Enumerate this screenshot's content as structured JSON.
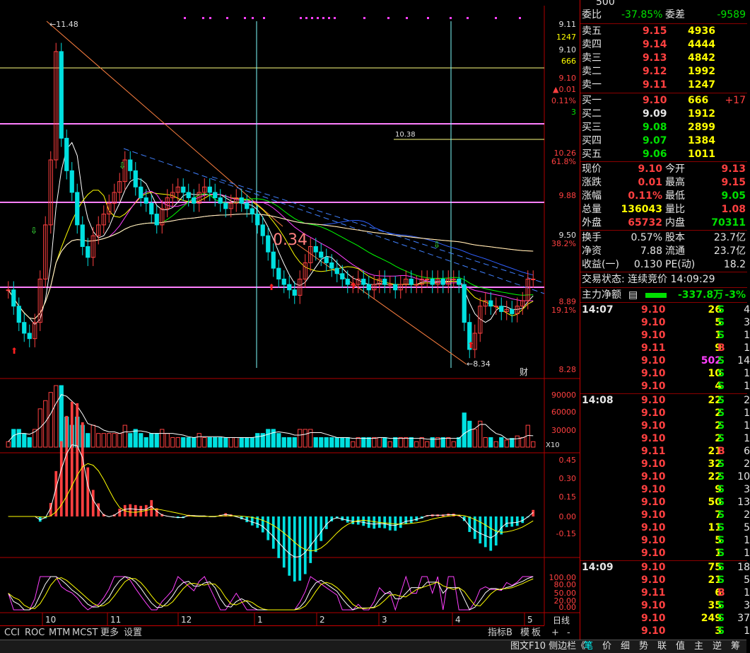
{
  "topbar": {
    "labels": [
      "",
      "",
      "",
      "",
      "",
      "",
      "",
      "",
      ""
    ]
  },
  "main_chart": {
    "y_ticks": [
      "9.11",
      "1247",
      "9.10",
      "666",
      "9.10",
      "▲0.01",
      "0.11%",
      "3",
      "10.26",
      "61.8%",
      "9.88",
      "9.50",
      "38.2%",
      "8.89",
      "19.1%",
      "8.28"
    ],
    "hlines": [
      {
        "value": "10.38",
        "label": "10.38"
      }
    ],
    "high_label": "11.48",
    "low_label": "8.34",
    "fib_label": "0.34",
    "cai_label": "财"
  },
  "volume": {
    "ticks": [
      "90000",
      "60000",
      "30000"
    ],
    "unit": "X10"
  },
  "macd": {
    "ticks": [
      "0.45",
      "0.30",
      "0.15",
      "0.00",
      "-0.15"
    ]
  },
  "kdj": {
    "ticks": [
      "100.00",
      "80.00",
      "50.00",
      "20.00",
      "0.00"
    ]
  },
  "x_axis": {
    "labels": [
      "10",
      "11",
      "12",
      "1",
      "2",
      "3",
      "4",
      "5"
    ],
    "period": "日线"
  },
  "tabs": {
    "left": [
      "CCI",
      "ROC",
      "MTM",
      "MCST",
      "更多",
      "设置"
    ],
    "right": [
      "指标B",
      "模",
      "板",
      "+",
      "-"
    ]
  },
  "panel": {
    "webi_label": "委比",
    "webi_val": "-37.85%",
    "weicha_label": "委差",
    "weicha_val": "-9589",
    "header_fragment": "500",
    "asks": [
      {
        "label": "卖五",
        "price": "9.15",
        "vol": "4936"
      },
      {
        "label": "卖四",
        "price": "9.14",
        "vol": "4444"
      },
      {
        "label": "卖三",
        "price": "9.13",
        "vol": "4842"
      },
      {
        "label": "卖二",
        "price": "9.12",
        "vol": "1992"
      },
      {
        "label": "卖一",
        "price": "9.11",
        "vol": "1247"
      }
    ],
    "bids": [
      {
        "label": "买一",
        "price": "9.10",
        "vol": "666",
        "extra": "+17"
      },
      {
        "label": "买二",
        "price": "9.09",
        "vol": "1912",
        "extra": ""
      },
      {
        "label": "买三",
        "price": "9.08",
        "vol": "2899",
        "extra": ""
      },
      {
        "label": "买四",
        "price": "9.07",
        "vol": "1384",
        "extra": ""
      },
      {
        "label": "买五",
        "price": "9.06",
        "vol": "1011",
        "extra": ""
      }
    ],
    "quote": [
      {
        "l1": "现价",
        "v1": "9.10",
        "l2": "今开",
        "v2": "9.13",
        "c1": "red",
        "c2": "red"
      },
      {
        "l1": "涨跌",
        "v1": "0.01",
        "l2": "最高",
        "v2": "9.15",
        "c1": "red",
        "c2": "red"
      },
      {
        "l1": "涨幅",
        "v1": "0.11%",
        "l2": "最低",
        "v2": "9.05",
        "c1": "red",
        "c2": "green"
      },
      {
        "l1": "总量",
        "v1": "136043",
        "l2": "量比",
        "v2": "1.08",
        "c1": "yellow",
        "c2": "red"
      },
      {
        "l1": "外盘",
        "v1": "65732",
        "l2": "内盘",
        "v2": "70311",
        "c1": "red",
        "c2": "green"
      }
    ],
    "stats": [
      {
        "l1": "换手",
        "v1": "0.57%",
        "l2": "股本",
        "v2": "23.7亿"
      },
      {
        "l1": "净资",
        "v1": "7.88",
        "l2": "流通",
        "v2": "23.7亿"
      },
      {
        "l1": "收益(一)",
        "v1": "0.130",
        "l2": "PE(动)",
        "v2": "18.2"
      }
    ],
    "trade_state": "交易状态: 连续竞价 14:09:29",
    "main_fund_label": "主力净额",
    "main_fund_val": "-337.8万",
    "main_fund_pct": "-3%",
    "ticks": [
      {
        "time": "14:07",
        "price": "9.10",
        "vol": "26",
        "side": "S",
        "n": "4"
      },
      {
        "time": "",
        "price": "9.10",
        "vol": "5",
        "side": "S",
        "n": "3"
      },
      {
        "time": "",
        "price": "9.10",
        "vol": "1",
        "side": "S",
        "n": "1"
      },
      {
        "time": "",
        "price": "9.11",
        "vol": "9",
        "side": "B",
        "n": "1"
      },
      {
        "time": "",
        "price": "9.10",
        "vol": "502",
        "side": "S",
        "n": "14"
      },
      {
        "time": "",
        "price": "9.10",
        "vol": "10",
        "side": "S",
        "n": "1"
      },
      {
        "time": "",
        "price": "9.10",
        "vol": "4",
        "side": "S",
        "n": "1"
      },
      {
        "time": "14:08",
        "price": "9.10",
        "vol": "22",
        "side": "S",
        "n": "2"
      },
      {
        "time": "",
        "price": "9.10",
        "vol": "2",
        "side": "S",
        "n": "1"
      },
      {
        "time": "",
        "price": "9.10",
        "vol": "2",
        "side": "S",
        "n": "1"
      },
      {
        "time": "",
        "price": "9.10",
        "vol": "2",
        "side": "S",
        "n": "1"
      },
      {
        "time": "",
        "price": "9.11",
        "vol": "21",
        "side": "B",
        "n": "6"
      },
      {
        "time": "",
        "price": "9.10",
        "vol": "32",
        "side": "S",
        "n": "2"
      },
      {
        "time": "",
        "price": "9.10",
        "vol": "22",
        "side": "S",
        "n": "10"
      },
      {
        "time": "",
        "price": "9.10",
        "vol": "9",
        "side": "S",
        "n": "3"
      },
      {
        "time": "",
        "price": "9.10",
        "vol": "50",
        "side": "S",
        "n": "13"
      },
      {
        "time": "",
        "price": "9.10",
        "vol": "7",
        "side": "S",
        "n": "2"
      },
      {
        "time": "",
        "price": "9.10",
        "vol": "11",
        "side": "S",
        "n": "5"
      },
      {
        "time": "",
        "price": "9.10",
        "vol": "5",
        "side": "S",
        "n": "1"
      },
      {
        "time": "",
        "price": "9.10",
        "vol": "1",
        "side": "S",
        "n": "1"
      },
      {
        "time": "14:09",
        "price": "9.10",
        "vol": "75",
        "side": "S",
        "n": "18"
      },
      {
        "time": "",
        "price": "9.10",
        "vol": "21",
        "side": "S",
        "n": "5"
      },
      {
        "time": "",
        "price": "9.11",
        "vol": "6",
        "side": "B",
        "n": "1"
      },
      {
        "time": "",
        "price": "9.10",
        "vol": "35",
        "side": "S",
        "n": "3"
      },
      {
        "time": "",
        "price": "9.10",
        "vol": "249",
        "side": "S",
        "n": "37"
      },
      {
        "time": "",
        "price": "9.10",
        "vol": "3",
        "side": "S",
        "n": "1"
      }
    ]
  },
  "bottombar": {
    "left": "图文F10 侧边栏《",
    "items": [
      "笔",
      "价",
      "细",
      "势",
      "联",
      "值",
      "主",
      "逆",
      "筹"
    ]
  },
  "colors": {
    "up": "#ff4040",
    "down": "#00e0e0",
    "ma5": "#ffffff",
    "ma10": "#ffff00",
    "ma20": "#ff40ff",
    "ma30": "#00ff00",
    "ma60": "#3060ff",
    "ma120": "#ff3030",
    "ma250": "#ffffc0"
  },
  "chart_data": {
    "type": "candlestick",
    "title": "",
    "y_range": [
      8.28,
      11.48
    ],
    "annotations": {
      "high": 11.48,
      "low": 8.34,
      "level": 10.38
    },
    "closes": [
      9.0,
      8.85,
      8.7,
      8.6,
      8.55,
      8.7,
      9.1,
      9.6,
      10.2,
      11.2,
      10.4,
      10.1,
      9.9,
      9.6,
      9.4,
      9.3,
      9.5,
      9.6,
      9.7,
      9.8,
      9.9,
      10.0,
      10.2,
      10.1,
      9.95,
      9.85,
      9.8,
      9.7,
      9.6,
      9.75,
      9.85,
      9.9,
      9.95,
      9.9,
      9.85,
      9.8,
      9.9,
      9.95,
      9.9,
      9.85,
      9.8,
      9.75,
      9.8,
      9.85,
      9.8,
      9.75,
      9.7,
      9.6,
      9.5,
      9.35,
      9.2,
      9.1,
      9.05,
      9.0,
      8.95,
      9.1,
      9.25,
      9.4,
      9.35,
      9.3,
      9.25,
      9.2,
      9.15,
      9.1,
      9.05,
      9.05,
      9.1,
      9.05,
      9.0,
      9.05,
      9.1,
      9.05,
      9.05,
      9.0,
      9.05,
      9.1,
      9.05,
      9.05,
      9.1,
      9.1,
      9.05,
      9.1,
      9.05,
      9.1,
      9.1,
      9.05,
      8.7,
      8.45,
      8.6,
      8.85,
      8.9,
      8.85,
      8.85,
      8.8,
      8.82,
      8.78,
      8.85,
      8.9,
      9.1,
      9.1
    ],
    "volume_max": 90000
  }
}
